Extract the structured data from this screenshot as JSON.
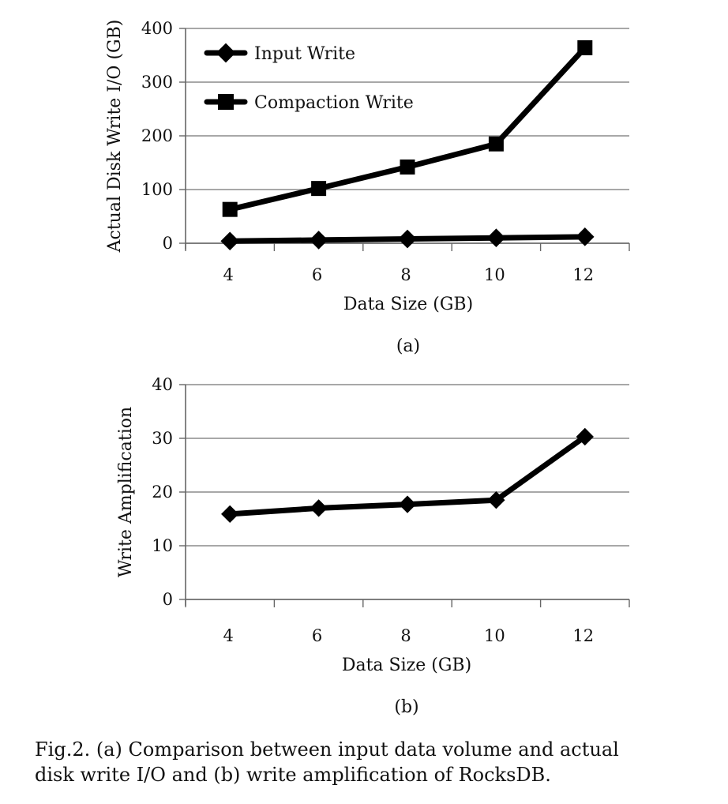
{
  "figure": {
    "caption_line1": "Fig.2.   (a) Comparison between input data volume and actual",
    "caption_line2": "disk write I/O and (b) write amplification of RocksDB."
  },
  "chart_data": [
    {
      "id": "a",
      "type": "line",
      "sublabel": "(a)",
      "x": [
        4,
        6,
        8,
        10,
        12
      ],
      "xlabel": "Data Size (GB)",
      "ylabel": "Actual Disk Write I/O (GB)",
      "ylim": [
        0,
        400
      ],
      "yticks": [
        0,
        100,
        200,
        300,
        400
      ],
      "grid": true,
      "legend_position": "top-left",
      "series": [
        {
          "name": "Input Write",
          "marker": "diamond",
          "color": "#000000",
          "values": [
            4,
            6,
            8,
            10,
            12
          ]
        },
        {
          "name": "Compaction Write",
          "marker": "square",
          "color": "#000000",
          "values": [
            63,
            102,
            142,
            185,
            364
          ]
        }
      ]
    },
    {
      "id": "b",
      "type": "line",
      "sublabel": "(b)",
      "x": [
        4,
        6,
        8,
        10,
        12
      ],
      "xlabel": "Data Size (GB)",
      "ylabel": "Write Amplification",
      "ylim": [
        0,
        40
      ],
      "yticks": [
        0,
        10,
        20,
        30,
        40
      ],
      "grid": true,
      "series": [
        {
          "marker": "diamond",
          "color": "#000000",
          "values": [
            15.9,
            17.0,
            17.7,
            18.5,
            30.3
          ]
        }
      ]
    }
  ]
}
